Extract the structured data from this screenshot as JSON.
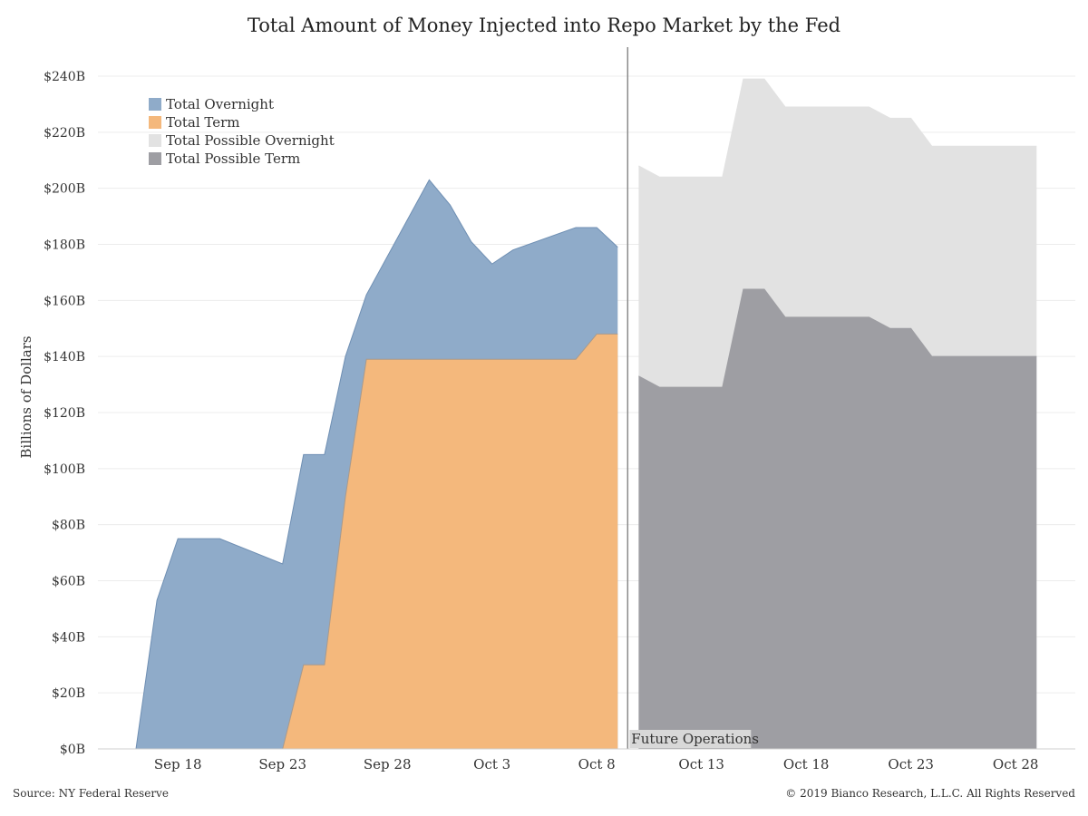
{
  "chart_data": {
    "type": "area",
    "title": "Total Amount of Money Injected into Repo Market by the Fed",
    "ylabel": "Billions of Dollars",
    "xlabel": "",
    "ylim": [
      0,
      240
    ],
    "y_ticks": [
      "$0B",
      "$20B",
      "$40B",
      "$60B",
      "$80B",
      "$100B",
      "$120B",
      "$140B",
      "$160B",
      "$180B",
      "$200B",
      "$220B",
      "$240B"
    ],
    "y_tick_values": [
      0,
      20,
      40,
      60,
      80,
      100,
      120,
      140,
      160,
      180,
      200,
      220,
      240
    ],
    "x_range": [
      "2019-09-16",
      "2019-10-30"
    ],
    "x_ticks": [
      {
        "date": "2019-09-18",
        "label": "Sep 18"
      },
      {
        "date": "2019-09-23",
        "label": "Sep 23"
      },
      {
        "date": "2019-09-28",
        "label": "Sep 28"
      },
      {
        "date": "2019-10-03",
        "label": "Oct 3"
      },
      {
        "date": "2019-10-08",
        "label": "Oct 8"
      },
      {
        "date": "2019-10-13",
        "label": "Oct 13"
      },
      {
        "date": "2019-10-18",
        "label": "Oct 18"
      },
      {
        "date": "2019-10-23",
        "label": "Oct 23"
      },
      {
        "date": "2019-10-28",
        "label": "Oct 28"
      }
    ],
    "grid": true,
    "legend_position": "top-left",
    "divider": {
      "date": "2019-10-09",
      "label": "Future Operations"
    },
    "series": [
      {
        "name": "Total Overnight",
        "color": "#8fabc9",
        "stroke": "#6f8fb3",
        "points": [
          {
            "x": "2019-09-16",
            "y": 0
          },
          {
            "x": "2019-09-17",
            "y": 53
          },
          {
            "x": "2019-09-18",
            "y": 75
          },
          {
            "x": "2019-09-19",
            "y": 75
          },
          {
            "x": "2019-09-20",
            "y": 75
          },
          {
            "x": "2019-09-23",
            "y": 66
          },
          {
            "x": "2019-09-24",
            "y": 105
          },
          {
            "x": "2019-09-25",
            "y": 105
          },
          {
            "x": "2019-09-26",
            "y": 140
          },
          {
            "x": "2019-09-27",
            "y": 162
          },
          {
            "x": "2019-09-30",
            "y": 203
          },
          {
            "x": "2019-10-01",
            "y": 194
          },
          {
            "x": "2019-10-02",
            "y": 181
          },
          {
            "x": "2019-10-03",
            "y": 173
          },
          {
            "x": "2019-10-04",
            "y": 178
          },
          {
            "x": "2019-10-07",
            "y": 186
          },
          {
            "x": "2019-10-08",
            "y": 186
          },
          {
            "x": "2019-10-09",
            "y": 179
          }
        ]
      },
      {
        "name": "Total Term",
        "color": "#f4b87c",
        "stroke": "#a79a8e",
        "points": [
          {
            "x": "2019-09-23",
            "y": 0
          },
          {
            "x": "2019-09-24",
            "y": 30
          },
          {
            "x": "2019-09-25",
            "y": 30
          },
          {
            "x": "2019-09-26",
            "y": 90
          },
          {
            "x": "2019-09-27",
            "y": 139
          },
          {
            "x": "2019-10-07",
            "y": 139
          },
          {
            "x": "2019-10-08",
            "y": 148
          },
          {
            "x": "2019-10-09",
            "y": 148
          }
        ]
      },
      {
        "name": "Total Possible Overnight",
        "color": "#e2e2e2",
        "stroke": "#e2e2e2",
        "points": [
          {
            "x": "2019-10-10",
            "y": 208
          },
          {
            "x": "2019-10-11",
            "y": 204
          },
          {
            "x": "2019-10-14",
            "y": 204
          },
          {
            "x": "2019-10-15",
            "y": 239
          },
          {
            "x": "2019-10-16",
            "y": 239
          },
          {
            "x": "2019-10-17",
            "y": 229
          },
          {
            "x": "2019-10-21",
            "y": 229
          },
          {
            "x": "2019-10-22",
            "y": 225
          },
          {
            "x": "2019-10-23",
            "y": 225
          },
          {
            "x": "2019-10-24",
            "y": 215
          },
          {
            "x": "2019-10-29",
            "y": 215
          }
        ]
      },
      {
        "name": "Total Possible Term",
        "color": "#9e9ea3",
        "stroke": "#9e9ea3",
        "points": [
          {
            "x": "2019-10-10",
            "y": 133
          },
          {
            "x": "2019-10-11",
            "y": 129
          },
          {
            "x": "2019-10-14",
            "y": 129
          },
          {
            "x": "2019-10-15",
            "y": 164
          },
          {
            "x": "2019-10-16",
            "y": 164
          },
          {
            "x": "2019-10-17",
            "y": 154
          },
          {
            "x": "2019-10-21",
            "y": 154
          },
          {
            "x": "2019-10-22",
            "y": 150
          },
          {
            "x": "2019-10-23",
            "y": 150
          },
          {
            "x": "2019-10-24",
            "y": 140
          },
          {
            "x": "2019-10-29",
            "y": 140
          }
        ]
      }
    ]
  },
  "footer": {
    "source": "Source: NY Federal Reserve",
    "copyright": "© 2019 Bianco Research, L.L.C. All Rights Reserved"
  }
}
